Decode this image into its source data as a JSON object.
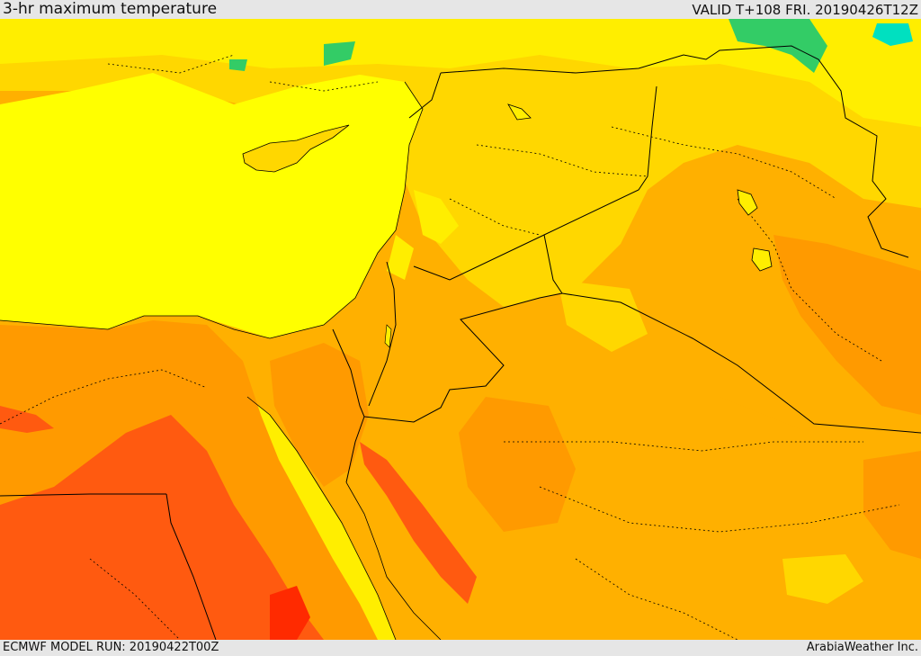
{
  "header": {
    "title": "3-hr maximum temperature",
    "valid": "VALID T+108 FRI. 20190426T12Z"
  },
  "footer": {
    "model_run": "ECMWF MODEL RUN: 20190422T00Z",
    "credit": "ArabiaWeather Inc."
  },
  "colors": {
    "sea": "#ffff00",
    "cool": "#ffee00",
    "mild": "#ffd700",
    "warm": "#ffb000",
    "hot": "#ff9a00",
    "very_hot": "#ff5a10",
    "extreme": "#ff2a00",
    "cold_green": "#33cc66",
    "cold_cyan": "#00e0c0",
    "border": "#000000"
  }
}
